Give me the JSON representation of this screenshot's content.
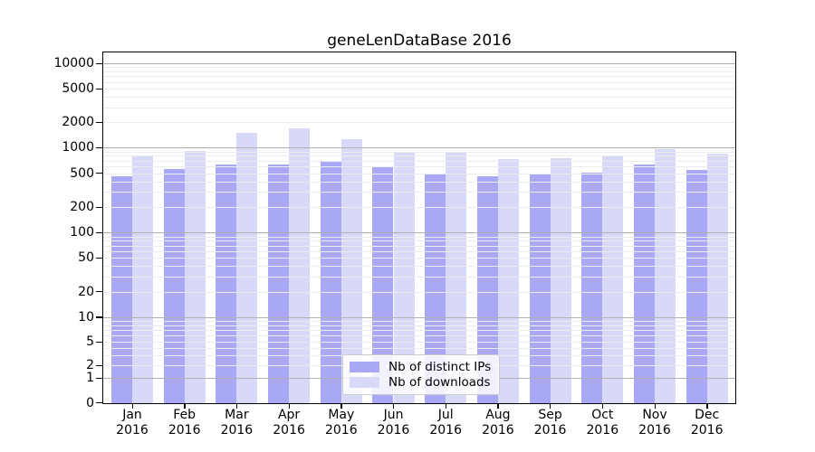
{
  "title": "geneLenDataBase 2016",
  "legend": {
    "items": [
      {
        "label": "Nb of distinct IPs",
        "color": "#a8a8f7"
      },
      {
        "label": "Nb of downloads",
        "color": "#d8d8f9"
      }
    ]
  },
  "y_axis": {
    "ticks": [
      {
        "label": "10000",
        "value": 10000
      },
      {
        "label": "5000",
        "value": 5000
      },
      {
        "label": "2000",
        "value": 2000
      },
      {
        "label": "1000",
        "value": 1000
      },
      {
        "label": "500",
        "value": 500
      },
      {
        "label": "200",
        "value": 200
      },
      {
        "label": "100",
        "value": 100
      },
      {
        "label": "50",
        "value": 50
      },
      {
        "label": "20",
        "value": 20
      },
      {
        "label": "10",
        "value": 10
      },
      {
        "label": "5",
        "value": 5
      },
      {
        "label": "2",
        "value": 2
      },
      {
        "label": "1",
        "value": 1
      },
      {
        "label": "0",
        "value": 0
      }
    ]
  },
  "x_axis": {
    "ticks": [
      {
        "month": "Jan",
        "year": "2016"
      },
      {
        "month": "Feb",
        "year": "2016"
      },
      {
        "month": "Mar",
        "year": "2016"
      },
      {
        "month": "Apr",
        "year": "2016"
      },
      {
        "month": "May",
        "year": "2016"
      },
      {
        "month": "Jun",
        "year": "2016"
      },
      {
        "month": "Jul",
        "year": "2016"
      },
      {
        "month": "Aug",
        "year": "2016"
      },
      {
        "month": "Sep",
        "year": "2016"
      },
      {
        "month": "Oct",
        "year": "2016"
      },
      {
        "month": "Nov",
        "year": "2016"
      },
      {
        "month": "Dec",
        "year": "2016"
      }
    ]
  },
  "colors": {
    "bar_distinct_ips": "#a8a8f7",
    "bar_downloads": "#d8d8f9",
    "grid_major": "#b0b0b0",
    "grid_minor": "#ececec",
    "axis": "#000000",
    "background": "#ffffff"
  },
  "chart_data": {
    "type": "bar",
    "title": "geneLenDataBase 2016",
    "categories": [
      "Jan 2016",
      "Feb 2016",
      "Mar 2016",
      "Apr 2016",
      "May 2016",
      "Jun 2016",
      "Jul 2016",
      "Aug 2016",
      "Sep 2016",
      "Oct 2016",
      "Nov 2016",
      "Dec 2016"
    ],
    "series": [
      {
        "name": "Nb of distinct IPs",
        "color": "#a8a8f7",
        "values": [
          460,
          565,
          635,
          635,
          690,
          590,
          500,
          460,
          480,
          510,
          640,
          540
        ]
      },
      {
        "name": "Nb of downloads",
        "color": "#d8d8f9",
        "values": [
          795,
          920,
          1510,
          1680,
          1260,
          885,
          900,
          740,
          760,
          780,
          960,
          850
        ]
      }
    ],
    "xlabel": "",
    "ylabel": "",
    "yscale": "symlog",
    "yticks": [
      0,
      1,
      2,
      5,
      10,
      20,
      50,
      100,
      200,
      500,
      1000,
      2000,
      5000,
      10000
    ],
    "ylim": [
      0,
      15000
    ],
    "grid": "horizontal major and minor gridlines",
    "legend_position": "lower center"
  }
}
